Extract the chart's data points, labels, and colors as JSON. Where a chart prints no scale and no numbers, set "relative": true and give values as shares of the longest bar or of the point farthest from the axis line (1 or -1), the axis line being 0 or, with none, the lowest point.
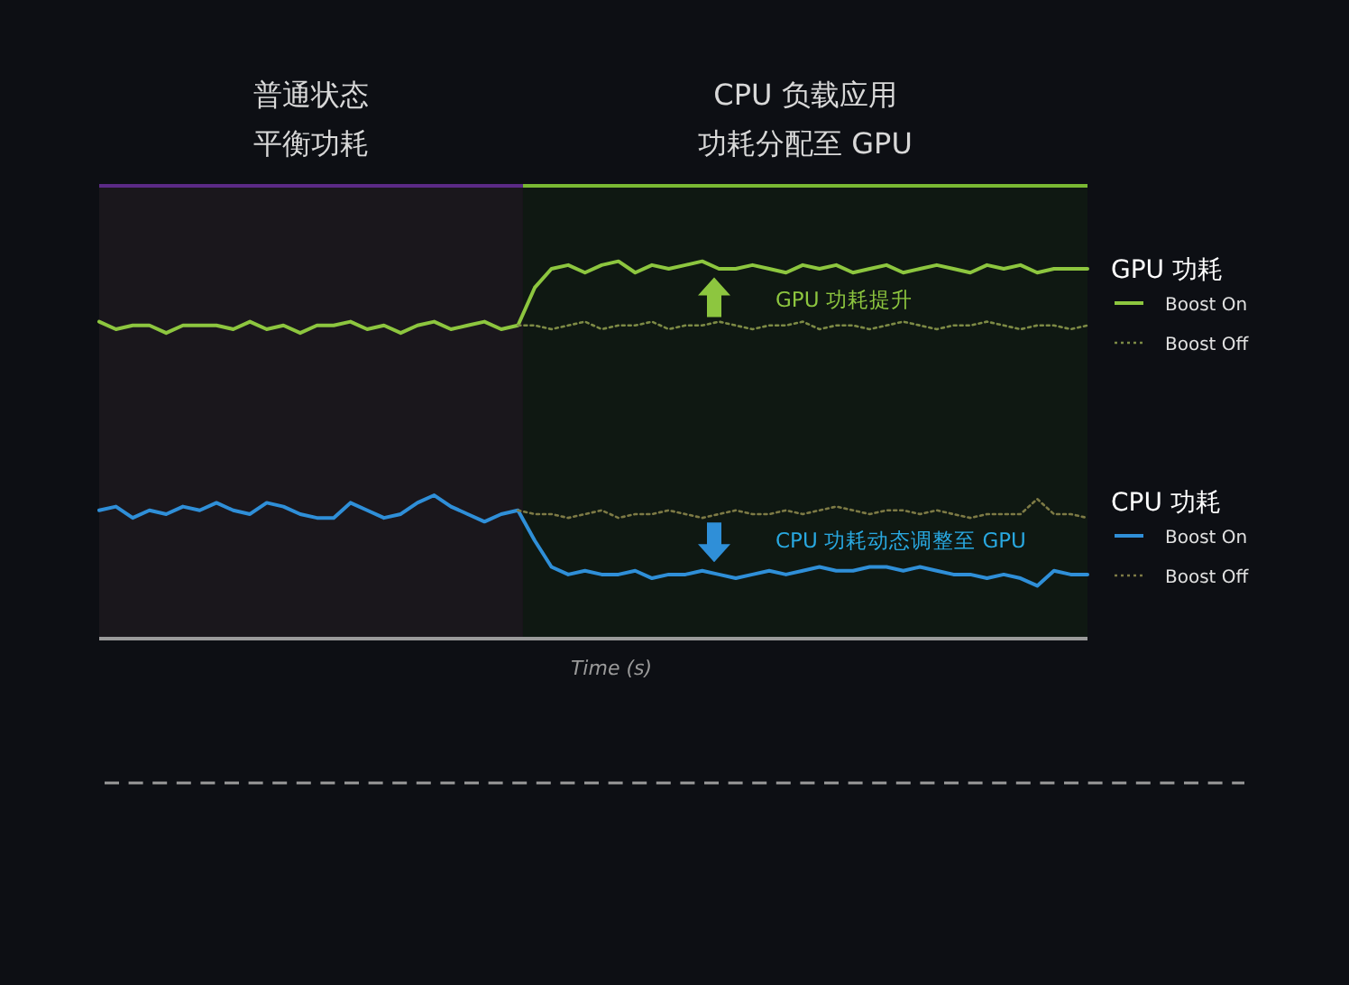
{
  "chart_data": {
    "type": "line",
    "relative": true,
    "xlabel": "Time (s)",
    "legend": "right",
    "categories": [
      null,
      null,
      null,
      null,
      null,
      null,
      null,
      null,
      null,
      null,
      null,
      null,
      null,
      null,
      null,
      null,
      null,
      null,
      null,
      null,
      null,
      null,
      null,
      null,
      null,
      null,
      null,
      null,
      null,
      null,
      null,
      null,
      null,
      null,
      null,
      null,
      null,
      null,
      null,
      null,
      null,
      null,
      null,
      null,
      null,
      null,
      null,
      null,
      null,
      null,
      null,
      null,
      null,
      null,
      null,
      null,
      null,
      null,
      null,
      null
    ],
    "series": [
      {
        "name": "Boost On",
        "color": "#8dc63f",
        "line_style": "solid",
        "values": [
          0.84,
          0.82,
          0.83,
          0.83,
          0.81,
          0.83,
          0.83,
          0.83,
          0.82,
          0.84,
          0.82,
          0.83,
          0.81,
          0.83,
          0.83,
          0.84,
          0.82,
          0.83,
          0.81,
          0.83,
          0.84,
          0.82,
          0.83,
          0.84,
          0.82,
          0.83,
          0.93,
          0.98,
          0.99,
          0.97,
          0.99,
          1.0,
          0.97,
          0.99,
          0.98,
          0.99,
          1.0,
          0.98,
          0.98,
          0.99,
          0.98,
          0.97,
          0.99,
          0.98,
          0.99,
          0.97,
          0.98,
          0.99,
          0.97,
          0.98,
          0.99,
          0.98,
          0.97,
          0.99,
          0.98,
          0.99,
          0.97,
          0.98,
          0.98,
          0.98
        ]
      },
      {
        "name": "Boost Off",
        "color": "#7d8a45",
        "line_style": "dotted",
        "values": [
          null,
          null,
          null,
          null,
          null,
          null,
          null,
          null,
          null,
          null,
          null,
          null,
          null,
          null,
          null,
          null,
          null,
          null,
          null,
          null,
          null,
          null,
          null,
          null,
          null,
          0.83,
          0.83,
          0.82,
          0.83,
          0.84,
          0.82,
          0.83,
          0.83,
          0.84,
          0.82,
          0.83,
          0.83,
          0.84,
          0.83,
          0.82,
          0.83,
          0.83,
          0.84,
          0.82,
          0.83,
          0.83,
          0.82,
          0.83,
          0.84,
          0.83,
          0.82,
          0.83,
          0.83,
          0.84,
          0.83,
          0.82,
          0.83,
          0.83,
          0.82,
          0.83
        ]
      },
      {
        "name": "Boost On",
        "color": "#2f8fd8",
        "line_style": "solid",
        "values": [
          0.34,
          0.35,
          0.32,
          0.34,
          0.33,
          0.35,
          0.34,
          0.36,
          0.34,
          0.33,
          0.36,
          0.35,
          0.33,
          0.32,
          0.32,
          0.36,
          0.34,
          0.32,
          0.33,
          0.36,
          0.38,
          0.35,
          0.33,
          0.31,
          0.33,
          0.34,
          0.26,
          0.19,
          0.17,
          0.18,
          0.17,
          0.17,
          0.18,
          0.16,
          0.17,
          0.17,
          0.18,
          0.17,
          0.16,
          0.17,
          0.18,
          0.17,
          0.18,
          0.19,
          0.18,
          0.18,
          0.19,
          0.19,
          0.18,
          0.19,
          0.18,
          0.17,
          0.17,
          0.16,
          0.17,
          0.16,
          0.14,
          0.18,
          0.17,
          0.17
        ]
      },
      {
        "name": "Boost Off",
        "color": "#7d7a45",
        "line_style": "dotted",
        "values": [
          null,
          null,
          null,
          null,
          null,
          null,
          null,
          null,
          null,
          null,
          null,
          null,
          null,
          null,
          null,
          null,
          null,
          null,
          null,
          null,
          null,
          null,
          null,
          null,
          null,
          0.34,
          0.33,
          0.33,
          0.32,
          0.33,
          0.34,
          0.32,
          0.33,
          0.33,
          0.34,
          0.33,
          0.32,
          0.33,
          0.34,
          0.33,
          0.33,
          0.34,
          0.33,
          0.34,
          0.35,
          0.34,
          0.33,
          0.34,
          0.34,
          0.33,
          0.34,
          0.33,
          0.32,
          0.33,
          0.33,
          0.33,
          0.37,
          0.33,
          0.33,
          0.32
        ]
      }
    ],
    "annotations": [
      "普通状态",
      "平衡功耗",
      "CPU 负载应用",
      "功耗分配至 GPU",
      "GPU 功耗",
      "CPU 功耗",
      "GPU 功耗提升",
      "CPU 功耗动态调整至 GPU"
    ]
  }
}
